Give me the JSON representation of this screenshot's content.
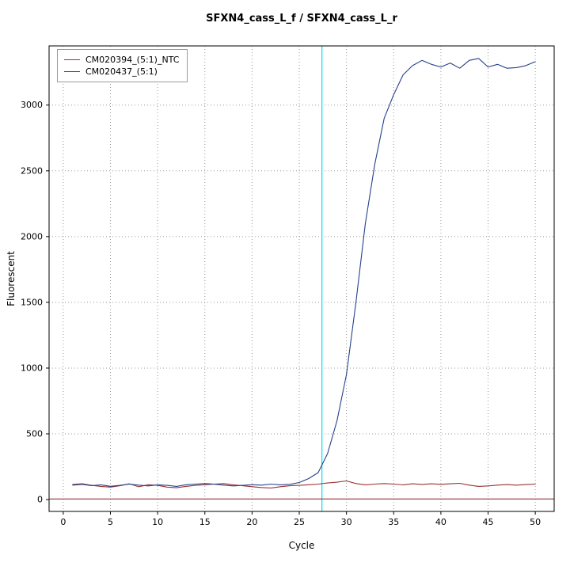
{
  "chart_data": {
    "type": "line",
    "title": "SFXN4_cass_L_f / SFXN4_cass_L_r",
    "xlabel": "Cycle",
    "ylabel": "Fluorescent",
    "xlim": [
      -1.5,
      52
    ],
    "ylim": [
      -90,
      3450
    ],
    "xticks": [
      0,
      5,
      10,
      15,
      20,
      25,
      30,
      35,
      40,
      45,
      50
    ],
    "yticks": [
      0,
      500,
      1000,
      1500,
      2000,
      2500,
      3000
    ],
    "grid": true,
    "grid_color": "#999999",
    "legend_position": "top-left",
    "x": [
      1,
      2,
      3,
      4,
      5,
      6,
      7,
      8,
      9,
      10,
      11,
      12,
      13,
      14,
      15,
      16,
      17,
      18,
      19,
      20,
      21,
      22,
      23,
      24,
      25,
      26,
      27,
      28,
      29,
      30,
      31,
      32,
      33,
      34,
      35,
      36,
      37,
      38,
      39,
      40,
      41,
      42,
      43,
      44,
      45,
      46,
      47,
      48,
      49,
      50
    ],
    "series": [
      {
        "name": "CM020394_(5:1)_NTC",
        "color": "#993333",
        "values": [
          115,
          121,
          108,
          100,
          95,
          105,
          120,
          97,
          113,
          108,
          95,
          90,
          100,
          108,
          113,
          118,
          122,
          112,
          105,
          98,
          92,
          88,
          98,
          105,
          108,
          113,
          118,
          126,
          132,
          142,
          122,
          112,
          118,
          122,
          118,
          112,
          120,
          115,
          120,
          116,
          120,
          124,
          110,
          100,
          104,
          110,
          114,
          110,
          114,
          118
        ]
      },
      {
        "name": "CM020437_(5:1)",
        "color": "#27408b",
        "values": [
          110,
          116,
          106,
          112,
          101,
          108,
          118,
          110,
          104,
          112,
          108,
          100,
          113,
          118,
          122,
          117,
          110,
          104,
          108,
          113,
          110,
          118,
          112,
          116,
          130,
          160,
          205,
          350,
          600,
          950,
          1500,
          2100,
          2550,
          2900,
          3080,
          3230,
          3300,
          3340,
          3310,
          3290,
          3320,
          3280,
          3340,
          3355,
          3290,
          3310,
          3280,
          3285,
          3300,
          3330
        ]
      }
    ],
    "threshold_line": {
      "y": 5,
      "color": "#8b1a1a"
    },
    "ct_line": {
      "x": 27.4,
      "color": "#00e0e8"
    }
  }
}
